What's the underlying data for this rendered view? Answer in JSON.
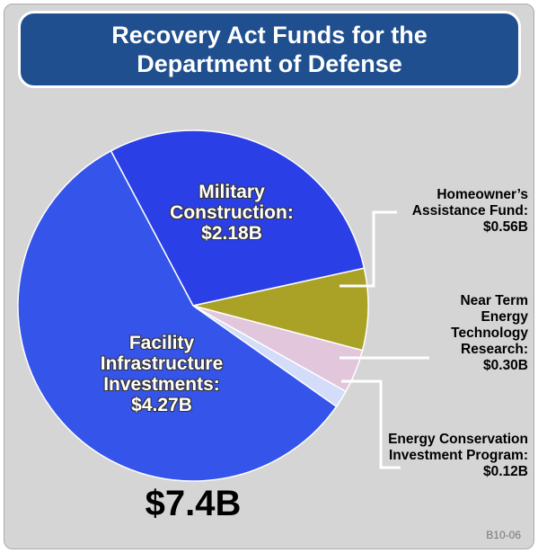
{
  "chart_data": {
    "type": "pie",
    "title": "Recovery Act Funds for the Department of Defense",
    "categories": [
      "Military Construction:",
      "Homeowner’s Assistance Fund:",
      "Near Term Energy Technology Research:",
      "Energy Conservation Investment Program:",
      "Facility Infrastructure Investments:"
    ],
    "values": [
      2.18,
      0.56,
      0.3,
      0.12,
      4.27
    ],
    "value_labels": [
      "$2.18B",
      "$0.56B",
      "$0.30B",
      "$0.12B",
      "$4.27B"
    ],
    "colors": [
      "#2b3fe6",
      "#a9a226",
      "#e2c6dc",
      "#d3dcf8",
      "#3554ea"
    ],
    "total_label": "$7.4B",
    "footnote": "B10-06"
  }
}
